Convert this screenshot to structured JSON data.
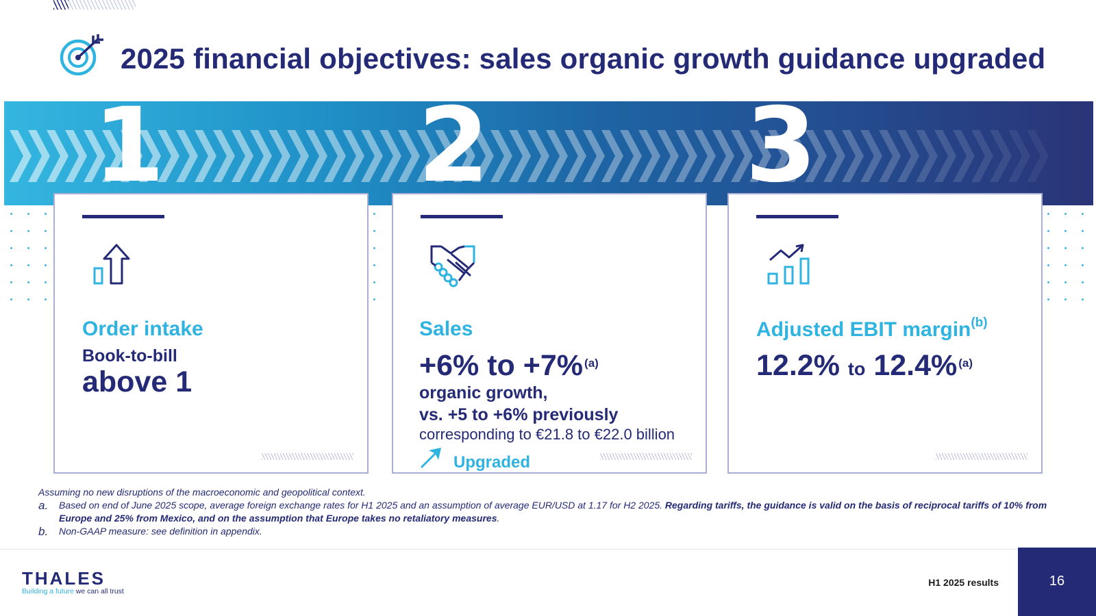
{
  "title": "2025 financial objectives: sales organic growth guidance upgraded",
  "numbers": [
    "1",
    "2",
    "3"
  ],
  "cards": [
    {
      "heading": "Order intake",
      "subheading": "Book-to-bill",
      "value": "above 1",
      "icon": "bar-up-arrow-icon"
    },
    {
      "heading": "Sales",
      "range_low": "+6%",
      "range_to": "to",
      "range_high": "+7%",
      "range_note": "(a)",
      "line1": "organic growth,",
      "line2": "vs. +5 to +6% previously",
      "line3": "corresponding to €21.8 to €22.0 billion",
      "upgraded_label": "Upgraded",
      "icon": "handshake-icon"
    },
    {
      "heading": "Adjusted EBIT margin",
      "heading_note": "(b)",
      "range_low": "12.2%",
      "range_to": "to",
      "range_high": "12.4%",
      "range_note": "(a)",
      "icon": "growth-chart-icon"
    }
  ],
  "footnotes": {
    "intro": "Assuming no new disruptions of the macroeconomic and geopolitical context.",
    "a_label": "a.",
    "a_text": "Based on end of June 2025 scope, average foreign exchange rates for H1 2025 and an assumption of average EUR/USD at 1.17 for H2 2025.",
    "a_bold": "Regarding tariffs, the guidance is valid on the basis of reciprocal tariffs of 10% from Europe and 25% from Mexico, and on the assumption that Europe takes no retaliatory measures",
    "a_end": ".",
    "b_label": "b.",
    "b_text": "Non-GAAP measure: see definition in appendix."
  },
  "footer": {
    "logo": "THALES",
    "tagline_highlight": "Building a future",
    "tagline_rest": " we can all trust",
    "label": "H1 2025 results",
    "page": "16"
  },
  "colors": {
    "navy": "#242a75",
    "cyan": "#2fb3e0",
    "banner_start": "#34b6e0",
    "banner_end": "#2a3477"
  }
}
